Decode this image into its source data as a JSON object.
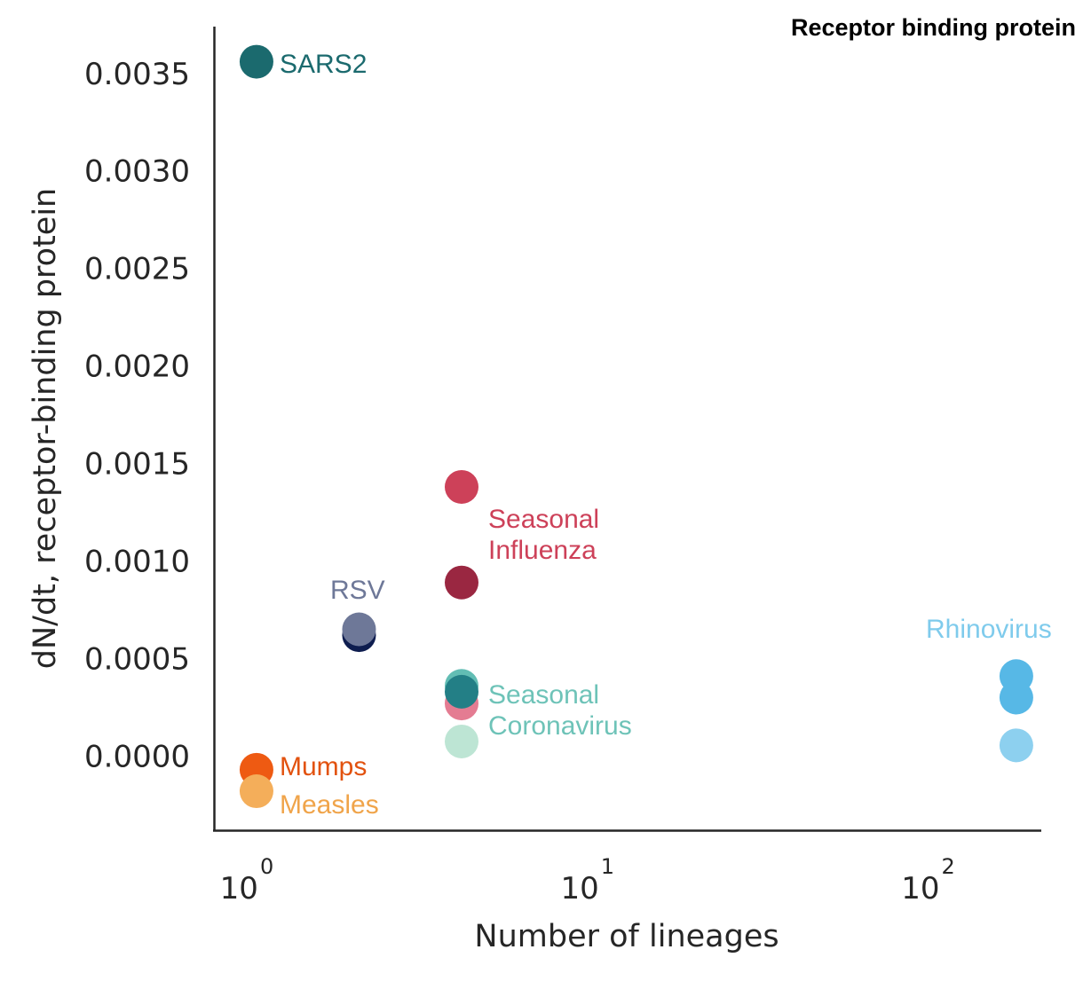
{
  "chart_data": {
    "type": "scatter",
    "title": "Receptor binding protein",
    "xlabel": "Number of lineages",
    "ylabel": "dN/dt, receptor-binding protein",
    "xscale": "log",
    "xlim": [
      0.75,
      200
    ],
    "ylim": [
      -0.00038,
      0.00374
    ],
    "x_ticks": [
      {
        "value": 1,
        "base": "10",
        "exp": "0"
      },
      {
        "value": 10,
        "base": "10",
        "exp": "1"
      },
      {
        "value": 100,
        "base": "10",
        "exp": "2"
      }
    ],
    "y_ticks": [
      {
        "value": 0.0,
        "label": "0.0000"
      },
      {
        "value": 0.0005,
        "label": "0.0005"
      },
      {
        "value": 0.001,
        "label": "0.0010"
      },
      {
        "value": 0.0015,
        "label": "0.0015"
      },
      {
        "value": 0.002,
        "label": "0.0020"
      },
      {
        "value": 0.0025,
        "label": "0.0025"
      },
      {
        "value": 0.003,
        "label": "0.0030"
      },
      {
        "value": 0.0035,
        "label": "0.0035"
      }
    ],
    "grid": false,
    "points": [
      {
        "group": "SARS2",
        "x": 1,
        "y": 0.00356,
        "color": "#1b6a6e"
      },
      {
        "group": "Mumps",
        "x": 1,
        "y": -7e-05,
        "color": "#ee5a12"
      },
      {
        "group": "Measles",
        "x": 1,
        "y": -0.00018,
        "color": "#f4ae5a"
      },
      {
        "group": "RSV",
        "x": 2,
        "y": 0.00062,
        "color": "#0e1d4f"
      },
      {
        "group": "RSV",
        "x": 2,
        "y": 0.00065,
        "color": "#6e7898"
      },
      {
        "group": "Seasonal Influenza",
        "x": 4,
        "y": 0.00138,
        "color": "#cd4159"
      },
      {
        "group": "Seasonal Influenza",
        "x": 4,
        "y": 0.00089,
        "color": "#9a2741"
      },
      {
        "group": "Seasonal Influenza",
        "x": 4,
        "y": 0.00027,
        "color": "#e47c92"
      },
      {
        "group": "Seasonal Coronavirus",
        "x": 4,
        "y": 7.5e-05,
        "color": "#bde5d4"
      },
      {
        "group": "Seasonal Coronavirus",
        "x": 4,
        "y": 0.00036,
        "color": "#62bdb4"
      },
      {
        "group": "Seasonal Coronavirus",
        "x": 4,
        "y": 0.00033,
        "color": "#237f86"
      },
      {
        "group": "Rhinovirus",
        "x": 170,
        "y": 0.00041,
        "color": "#57b8e6"
      },
      {
        "group": "Rhinovirus",
        "x": 170,
        "y": 0.0003,
        "color": "#57b8e6"
      },
      {
        "group": "Rhinovirus",
        "x": 170,
        "y": 5.5e-05,
        "color": "#8dd0ef"
      }
    ],
    "annotations": [
      {
        "lines": [
          "SARS2"
        ],
        "color": "#1b6a6e"
      },
      {
        "lines": [
          "Mumps"
        ],
        "color": "#e2520f"
      },
      {
        "lines": [
          "Measles"
        ],
        "color": "#f0a44a"
      },
      {
        "lines": [
          "RSV"
        ],
        "color": "#6e7898"
      },
      {
        "lines": [
          "Seasonal",
          "Influenza"
        ],
        "color": "#cd4159"
      },
      {
        "lines": [
          "Seasonal",
          "Coronavirus"
        ],
        "color": "#6ec3b8"
      },
      {
        "lines": [
          "Rhinovirus"
        ],
        "color": "#7fcbec"
      }
    ]
  }
}
